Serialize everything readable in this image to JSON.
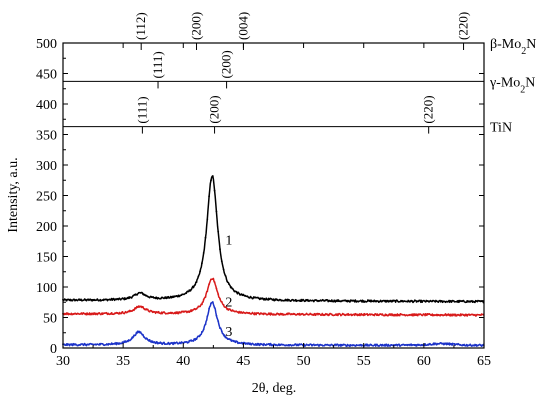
{
  "chart_data": {
    "type": "line",
    "xlabel": "2θ, deg.",
    "ylabel": "Intensity, a.u.",
    "xlim": [
      30,
      65
    ],
    "ylim": [
      0,
      500
    ],
    "x_ticks": [
      30,
      35,
      40,
      45,
      50,
      55,
      60,
      65
    ],
    "y_ticks": [
      0,
      50,
      100,
      150,
      200,
      250,
      300,
      350,
      400,
      450,
      500
    ],
    "grid": false,
    "series": [
      {
        "name": "1",
        "color": "#000000",
        "baseline": 78,
        "end_baseline": 76,
        "peaks": [
          {
            "center": 36.4,
            "height": 11,
            "width": 0.6
          },
          {
            "center": 42.4,
            "height": 205,
            "width": 0.55
          }
        ]
      },
      {
        "name": "2",
        "color": "#d81b1b",
        "baseline": 56,
        "end_baseline": 54,
        "peaks": [
          {
            "center": 36.4,
            "height": 12,
            "width": 0.6
          },
          {
            "center": 42.4,
            "height": 59,
            "width": 0.55
          }
        ]
      },
      {
        "name": "3",
        "color": "#1c33c8",
        "baseline": 5,
        "end_baseline": 4,
        "peaks": [
          {
            "center": 36.3,
            "height": 21,
            "width": 0.6
          },
          {
            "center": 42.4,
            "height": 70,
            "width": 0.55
          },
          {
            "center": 61.4,
            "height": 3,
            "width": 1.2
          }
        ]
      }
    ],
    "curve_labels": [
      {
        "text": "1",
        "x": 43.5,
        "y": 170
      },
      {
        "text": "2",
        "x": 43.5,
        "y": 68
      },
      {
        "text": "3",
        "x": 43.5,
        "y": 20
      }
    ],
    "reference_phases": [
      {
        "name": "β-Mo",
        "subscript": "2",
        "suffix": "N",
        "line_y": 500,
        "lines": [
          {
            "x": 36.5,
            "label": "(112)"
          },
          {
            "x": 41.1,
            "label": "(200)"
          },
          {
            "x": 45.0,
            "label": "(004)"
          },
          {
            "x": 63.3,
            "label": "(220)"
          }
        ]
      },
      {
        "name": "γ-Mo",
        "subscript": "2",
        "suffix": "N",
        "line_y": 437,
        "lines": [
          {
            "x": 37.9,
            "label": "(111)"
          },
          {
            "x": 43.6,
            "label": "(200)"
          }
        ]
      },
      {
        "name": "TiN",
        "subscript": "",
        "suffix": "",
        "line_y": 363,
        "lines": [
          {
            "x": 36.6,
            "label": "(111)"
          },
          {
            "x": 42.6,
            "label": "(200)"
          },
          {
            "x": 60.4,
            "label": "(220)"
          }
        ]
      }
    ]
  }
}
